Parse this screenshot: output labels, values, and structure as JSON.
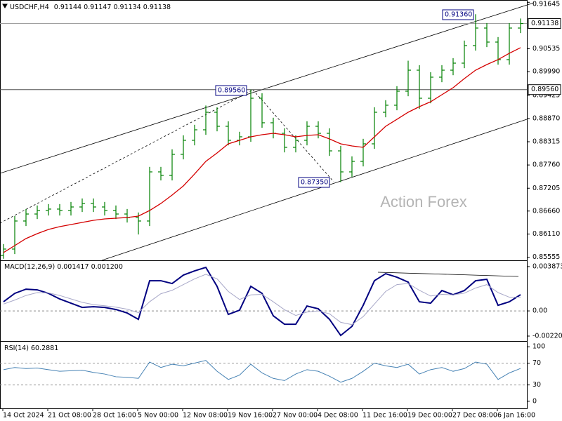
{
  "chart_data": [
    {
      "type": "ohlc",
      "title": "USDCHF,H4",
      "last_bar": [
        0.91144,
        0.91147,
        0.91134,
        0.91138
      ],
      "watermark": "Action Forex",
      "color": "#008000",
      "categories": [
        "14 Oct 2024",
        null,
        null,
        null,
        "21 Oct 08:00",
        null,
        null,
        null,
        "28 Oct 16:00",
        null,
        null,
        null,
        "5 Nov 00:00",
        null,
        null,
        null,
        "12 Nov 08:00",
        null,
        null,
        null,
        "19 Nov 16:00",
        null,
        null,
        null,
        "27 Nov 00:00",
        null,
        null,
        null,
        "4 Dec 08:00",
        null,
        null,
        null,
        "11 Dec 16:00",
        null,
        null,
        null,
        "19 Dec 00:00",
        null,
        null,
        null,
        "27 Dec 08:00",
        null,
        null,
        null,
        "6 Jan 16:00",
        null,
        null
      ],
      "open": [
        0.856,
        0.85752,
        0.86422,
        0.86589,
        0.86673,
        0.86707,
        0.86673,
        0.86757,
        0.86841,
        0.86757,
        0.86673,
        0.86589,
        0.86506,
        0.86422,
        0.87595,
        0.87511,
        0.88014,
        0.88349,
        0.886,
        0.89019,
        0.88684,
        0.88349,
        0.88433,
        0.89354,
        0.88768,
        0.88516,
        0.88181,
        0.88349,
        0.88684,
        0.88516,
        0.88097,
        0.87595,
        0.87846,
        0.88265,
        0.89019,
        0.89187,
        0.89522,
        0.90024,
        0.89354,
        0.89857,
        0.90024,
        0.90192,
        0.90611,
        0.9103,
        0.90695,
        0.90276,
        0.9103
      ],
      "high": [
        0.85872,
        0.86542,
        0.86709,
        0.86793,
        0.86827,
        0.86827,
        0.86877,
        0.86961,
        0.86961,
        0.86877,
        0.86793,
        0.86709,
        0.86626,
        0.87715,
        0.87715,
        0.88134,
        0.88469,
        0.8872,
        0.8918,
        0.89139,
        0.88804,
        0.88553,
        0.8956,
        0.89474,
        0.88888,
        0.88636,
        0.88469,
        0.88804,
        0.88804,
        0.88636,
        0.88217,
        0.87966,
        0.88385,
        0.89139,
        0.89307,
        0.89642,
        0.9025,
        0.90144,
        0.89977,
        0.90144,
        0.90312,
        0.90731,
        0.9136,
        0.9115,
        0.90815,
        0.9115,
        0.91258
      ],
      "low": [
        0.8552,
        0.85632,
        0.86302,
        0.86469,
        0.86553,
        0.86553,
        0.86553,
        0.86637,
        0.86637,
        0.86553,
        0.86469,
        0.86386,
        0.861,
        0.86302,
        0.87391,
        0.87391,
        0.87894,
        0.88229,
        0.8848,
        0.88564,
        0.88229,
        0.88229,
        0.88313,
        0.88648,
        0.88396,
        0.88061,
        0.88061,
        0.88229,
        0.88396,
        0.87977,
        0.8735,
        0.87475,
        0.87726,
        0.88145,
        0.88899,
        0.89067,
        0.89402,
        0.891,
        0.89234,
        0.89737,
        0.89904,
        0.90072,
        0.90491,
        0.90575,
        0.90156,
        0.90156,
        0.9091
      ],
      "close": [
        0.85752,
        0.86422,
        0.86589,
        0.86673,
        0.86707,
        0.86673,
        0.86757,
        0.86841,
        0.86757,
        0.86673,
        0.86589,
        0.86506,
        0.86422,
        0.87595,
        0.87511,
        0.88014,
        0.88349,
        0.886,
        0.89019,
        0.88684,
        0.88349,
        0.88433,
        0.89354,
        0.88768,
        0.88516,
        0.88181,
        0.88349,
        0.88684,
        0.88516,
        0.88097,
        0.87595,
        0.87846,
        0.88265,
        0.89019,
        0.89187,
        0.89522,
        0.90024,
        0.89354,
        0.89857,
        0.90024,
        0.90192,
        0.90611,
        0.9103,
        0.90695,
        0.90276,
        0.9103,
        0.91138
      ],
      "moving_average": {
        "color": "#d40000",
        "values": [
          0.85668,
          0.85835,
          0.86003,
          0.8612,
          0.86221,
          0.86288,
          0.86338,
          0.86388,
          0.86439,
          0.86472,
          0.86489,
          0.86506,
          0.86539,
          0.86673,
          0.86841,
          0.87042,
          0.8726,
          0.87545,
          0.87846,
          0.88047,
          0.88265,
          0.88349,
          0.88433,
          0.88483,
          0.88516,
          0.88483,
          0.88433,
          0.88466,
          0.88483,
          0.88382,
          0.88265,
          0.88215,
          0.88181,
          0.88433,
          0.88684,
          0.88851,
          0.89019,
          0.89153,
          0.8927,
          0.89438,
          0.89605,
          0.89823,
          0.90024,
          0.90158,
          0.90276,
          0.90427,
          0.90561
        ]
      },
      "levels": [
        {
          "value": 0.91138,
          "label": "0.91138",
          "color": "#a0a0a0"
        },
        {
          "value": 0.8956,
          "label": "0.89560",
          "color": "#505050"
        }
      ],
      "annotations": [
        "0.91360",
        "0.89560",
        "0.87350"
      ],
      "ylim": [
        0.855,
        0.917
      ],
      "yticks": [
        0.91645,
        0.90535,
        {
          "value": 0.8999,
          "label": "0.89990"
        },
        0.89425,
        {
          "value": 0.8887,
          "label": "0.88870"
        },
        0.88315,
        {
          "value": 0.8776,
          "label": "0.87760"
        },
        0.87205,
        {
          "value": 0.8666,
          "label": "0.86660"
        },
        {
          "value": 0.8611,
          "label": "0.86110"
        },
        0.85555
      ]
    },
    {
      "type": "line",
      "title": "MACD(12,26,9)",
      "readout": [
        "0.001417",
        "0.001200"
      ],
      "zero_line": true,
      "series": [
        {
          "color": "#000080",
          "values": [
            0.000798,
            0.001534,
            0.001902,
            0.00184,
            0.001534,
            0.001043,
            0.000675,
            0.000307,
            0.000368,
            0.000307,
            0.000123,
            -0.000184,
            -0.000736,
            0.002638,
            0.002638,
            0.002393,
            0.003129,
            0.003497,
            0.003804,
            0.002147,
            -0.000307,
            6.1e-05,
            0.002147,
            0.001534,
            -0.000429,
            -0.001166,
            -0.001166,
            0.000429,
            0.000184,
            -0.000736,
            -0.002147,
            -0.00135,
            0.000491,
            0.002638,
            0.003252,
            0.002945,
            0.002515,
            0.000798,
            0.000675,
            0.001779,
            0.001411,
            0.001779,
            0.002638,
            0.002761,
            0.000491,
            0.000798,
            0.001417
          ]
        },
        {
          "color": "#a8a8c8",
          "values": [
            0.0006,
            0.00095,
            0.00135,
            0.0016,
            0.00158,
            0.00135,
            0.00105,
            0.00075,
            0.00055,
            0.00045,
            0.00033,
            0.00015,
            -0.00015,
            0.0008,
            0.0015,
            0.0018,
            0.0023,
            0.0028,
            0.0032,
            0.0028,
            0.0017,
            0.001,
            0.0014,
            0.00145,
            0.0008,
            0.0001,
            -0.0004,
            -0.0001,
            0,
            -0.00025,
            -0.001,
            -0.0012,
            -0.0005,
            0.0006,
            0.0017,
            0.0023,
            0.0024,
            0.0018,
            0.0013,
            0.00145,
            0.0014,
            0.00155,
            0.002,
            0.0023,
            0.0016,
            0.0012,
            0.0012
          ]
        }
      ],
      "ylim": [
        -0.00257,
        0.00436
      ],
      "yticks": [
        0.003873,
        {
          "value": 0,
          "label": "0.00"
        },
        -0.002201
      ]
    },
    {
      "type": "line",
      "title": "RSI(14)",
      "color": "#4682b4",
      "values": [
        58,
        62,
        60,
        61,
        58,
        55,
        56,
        57,
        53,
        50,
        45,
        44,
        42,
        72,
        62,
        68,
        65,
        70,
        75,
        55,
        40,
        48,
        68,
        52,
        42,
        38,
        50,
        58,
        55,
        46,
        35,
        42,
        55,
        70,
        65,
        62,
        68,
        50,
        58,
        62,
        55,
        60,
        72,
        68,
        40,
        52,
        60.2881
      ],
      "levels": [
        30,
        70
      ],
      "ylim": [
        -13,
        108
      ],
      "yticks": [
        100,
        70,
        30,
        0
      ]
    }
  ]
}
